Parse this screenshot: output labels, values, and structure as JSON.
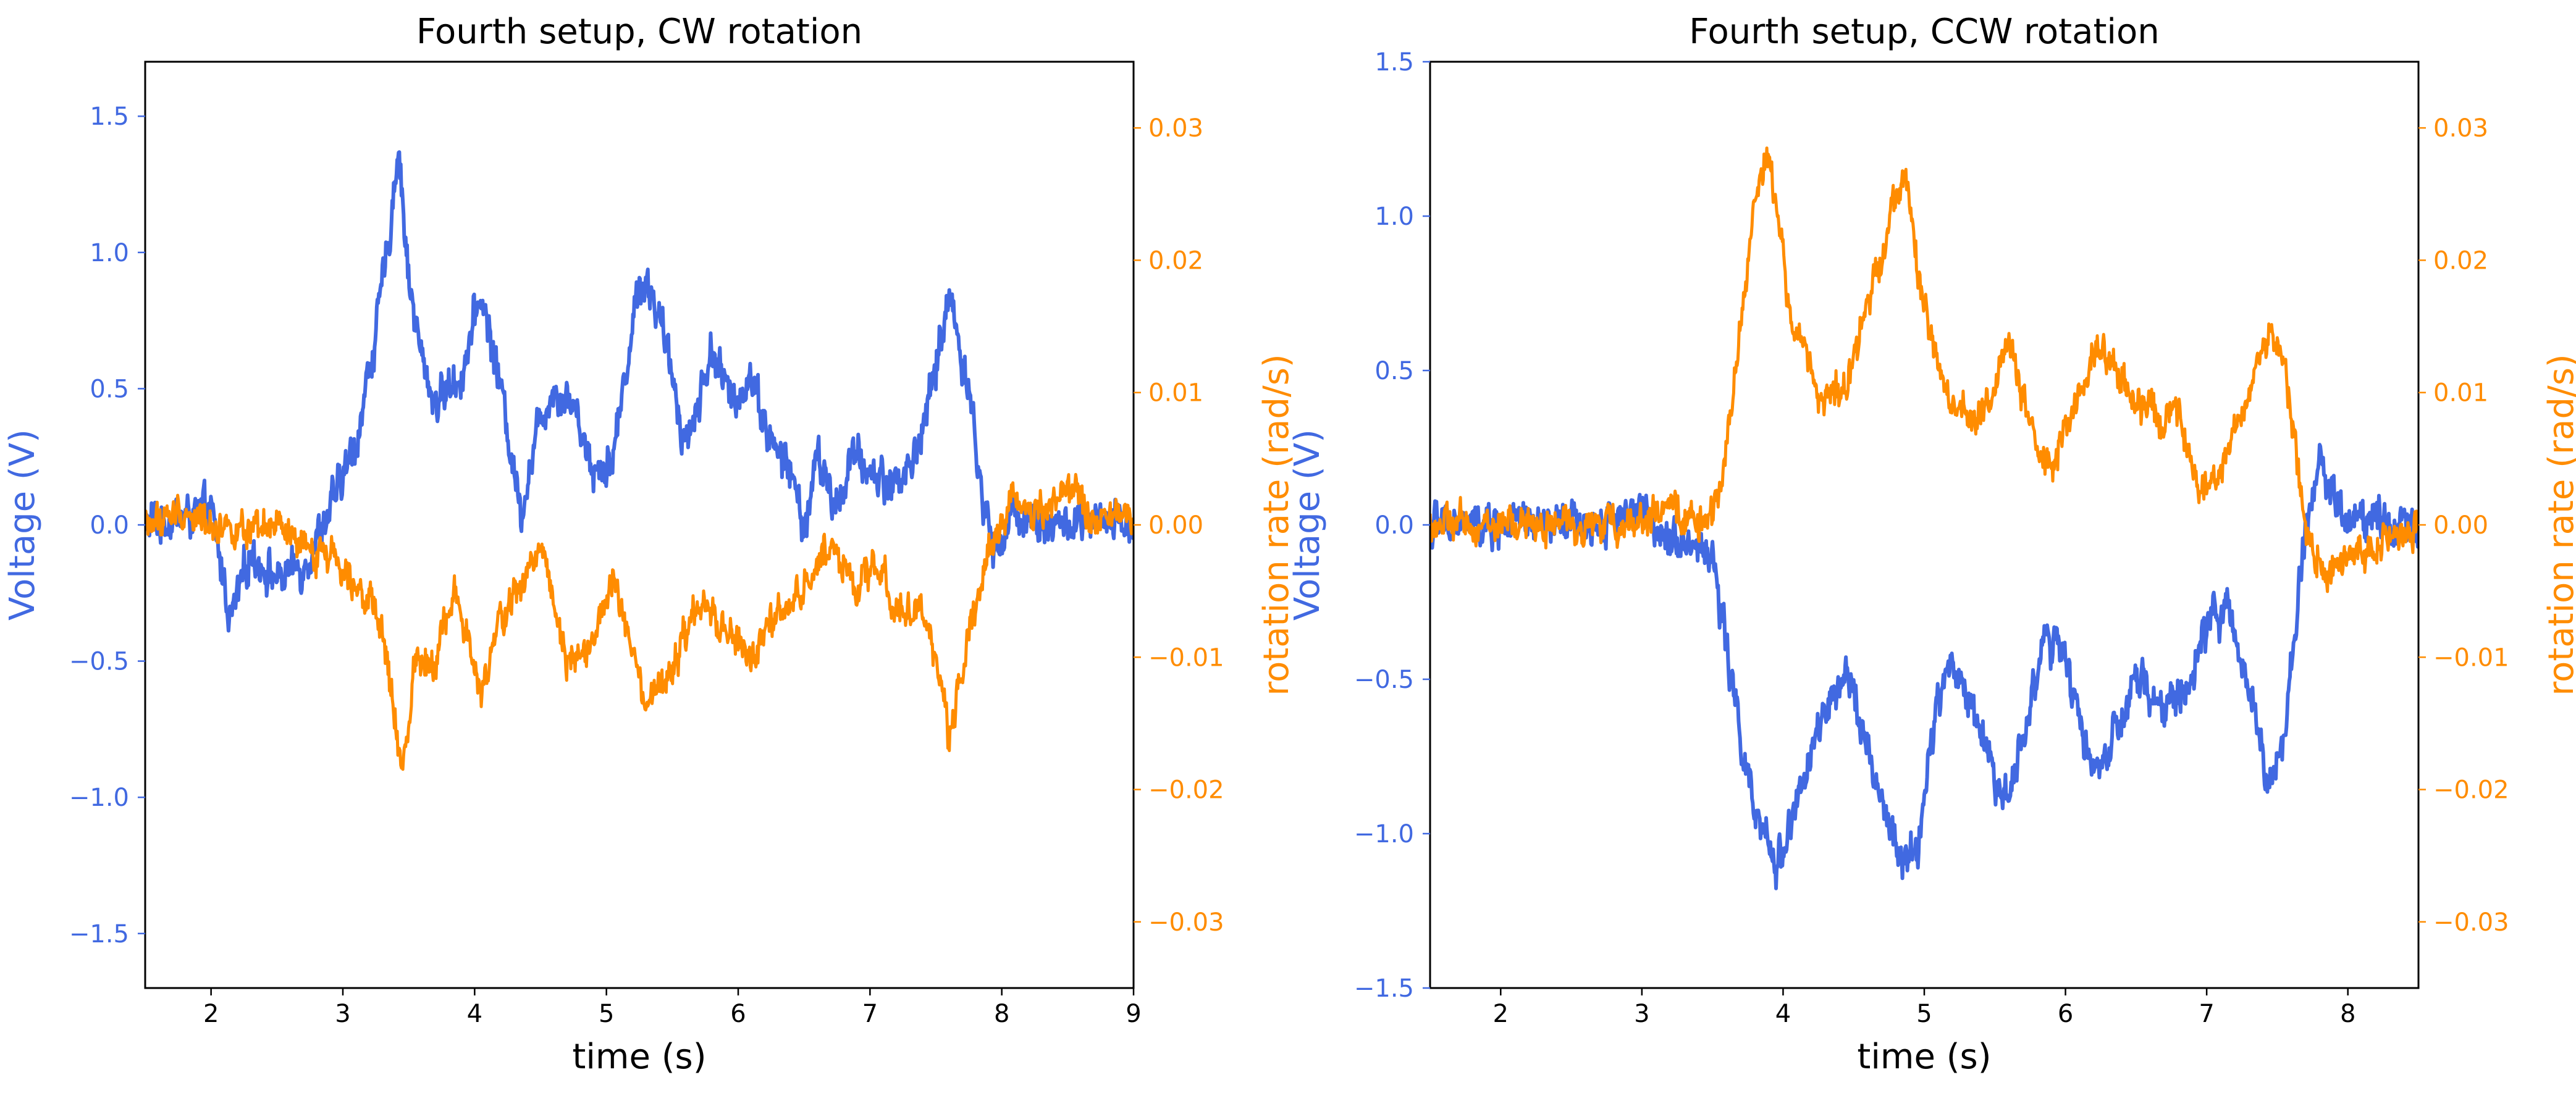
{
  "colors": {
    "voltage": "#4169E1",
    "rotation": "#FF8C00",
    "axis": "#000000"
  },
  "chart_data": [
    {
      "type": "line",
      "title": "Fourth setup, CW rotation",
      "xlabel": "time (s)",
      "ylabel_left": "Voltage (V)",
      "ylabel_right": "rotation rate (rad/s)",
      "xlim": [
        1.5,
        9.0
      ],
      "ylim_left": [
        -1.7,
        1.7
      ],
      "ylim_right": [
        -0.035,
        0.035
      ],
      "xticks": [
        2,
        3,
        4,
        5,
        6,
        7,
        8,
        9
      ],
      "xtick_labels": [
        "2",
        "3",
        "4",
        "5",
        "6",
        "7",
        "8",
        "9"
      ],
      "yticks_left": [
        -1.5,
        -1.0,
        -0.5,
        0.0,
        0.5,
        1.0,
        1.5
      ],
      "ytick_labels_left": [
        "−1.5",
        "−1.0",
        "−0.5",
        "0.0",
        "0.5",
        "1.0",
        "1.5"
      ],
      "yticks_right": [
        -0.03,
        -0.02,
        -0.01,
        0.0,
        0.01,
        0.02,
        0.03
      ],
      "ytick_labels_right": [
        "−0.03",
        "−0.02",
        "−0.01",
        "0.00",
        "0.01",
        "0.02",
        "0.03"
      ],
      "series": [
        {
          "name": "Voltage (V)",
          "axis": "left",
          "color": "#4169E1",
          "x": [
            1.5,
            2.0,
            2.15,
            2.3,
            2.5,
            2.7,
            2.9,
            3.1,
            3.25,
            3.35,
            3.42,
            3.5,
            3.6,
            3.7,
            3.8,
            3.9,
            4.05,
            4.2,
            4.35,
            4.5,
            4.6,
            4.75,
            4.9,
            5.05,
            5.25,
            5.35,
            5.5,
            5.6,
            5.7,
            5.8,
            5.95,
            6.1,
            6.25,
            6.4,
            6.5,
            6.6,
            6.75,
            6.85,
            7.0,
            7.15,
            7.3,
            7.45,
            7.6,
            7.75,
            7.85,
            7.95,
            8.1,
            8.4,
            8.7,
            9.0
          ],
          "y": [
            0.0,
            0.05,
            -0.35,
            -0.1,
            -0.2,
            -0.15,
            0.05,
            0.3,
            0.7,
            1.05,
            1.4,
            0.9,
            0.6,
            0.45,
            0.5,
            0.55,
            0.85,
            0.5,
            0.05,
            0.4,
            0.5,
            0.45,
            0.2,
            0.25,
            0.9,
            0.85,
            0.55,
            0.3,
            0.45,
            0.65,
            0.45,
            0.55,
            0.3,
            0.2,
            -0.02,
            0.25,
            0.05,
            0.25,
            0.2,
            0.15,
            0.2,
            0.45,
            0.85,
            0.5,
            0.1,
            -0.1,
            0.05,
            0.0,
            0.0,
            0.0
          ]
        },
        {
          "name": "rotation rate (rad/s)",
          "axis": "right",
          "color": "#FF8C00",
          "x": [
            1.5,
            1.8,
            2.0,
            2.15,
            2.3,
            2.5,
            2.7,
            2.9,
            3.1,
            3.3,
            3.45,
            3.55,
            3.7,
            3.85,
            4.05,
            4.2,
            4.4,
            4.5,
            4.7,
            4.9,
            5.05,
            5.3,
            5.5,
            5.7,
            5.9,
            6.1,
            6.3,
            6.5,
            6.7,
            6.9,
            7.05,
            7.2,
            7.4,
            7.5,
            7.6,
            7.75,
            7.9,
            8.1,
            8.3,
            8.5,
            8.7,
            9.0
          ],
          "y": [
            0.0,
            0.001,
            0.0,
            0.0,
            -0.001,
            0.0,
            -0.002,
            -0.002,
            -0.004,
            -0.008,
            -0.019,
            -0.01,
            -0.01,
            -0.005,
            -0.013,
            -0.007,
            -0.004,
            -0.001,
            -0.01,
            -0.009,
            -0.004,
            -0.014,
            -0.011,
            -0.006,
            -0.008,
            -0.01,
            -0.007,
            -0.005,
            -0.001,
            -0.005,
            -0.003,
            -0.006,
            -0.007,
            -0.01,
            -0.016,
            -0.008,
            -0.002,
            0.002,
            0.001,
            0.003,
            0.0,
            0.001
          ]
        }
      ]
    },
    {
      "type": "line",
      "title": "Fourth setup, CCW rotation",
      "xlabel": "time (s)",
      "ylabel_left": "Voltage (V)",
      "ylabel_right": "rotation rate (rad/s)",
      "xlim": [
        1.5,
        8.5
      ],
      "ylim_left": [
        -1.5,
        1.5
      ],
      "ylim_right": [
        -0.035,
        0.035
      ],
      "xticks": [
        2,
        3,
        4,
        5,
        6,
        7,
        8
      ],
      "xtick_labels": [
        "2",
        "3",
        "4",
        "5",
        "6",
        "7",
        "8"
      ],
      "yticks_left": [
        -1.5,
        -1.0,
        -0.5,
        0.0,
        0.5,
        1.0,
        1.5
      ],
      "ytick_labels_left": [
        "−1.5",
        "−1.0",
        "−0.5",
        "0.0",
        "0.5",
        "1.0",
        "1.5"
      ],
      "yticks_right": [
        -0.03,
        -0.02,
        -0.01,
        0.0,
        0.01,
        0.02,
        0.03
      ],
      "ytick_labels_right": [
        "−0.03",
        "−0.02",
        "−0.01",
        "0.00",
        "0.01",
        "0.02",
        "0.03"
      ],
      "series": [
        {
          "name": "Voltage (V)",
          "axis": "left",
          "color": "#4169E1",
          "x": [
            1.5,
            2.5,
            2.7,
            2.9,
            3.1,
            3.3,
            3.5,
            3.65,
            3.8,
            3.95,
            4.1,
            4.3,
            4.5,
            4.65,
            4.85,
            4.95,
            5.1,
            5.2,
            5.4,
            5.55,
            5.7,
            5.85,
            6.0,
            6.2,
            6.35,
            6.5,
            6.7,
            6.9,
            7.05,
            7.2,
            7.35,
            7.45,
            7.55,
            7.7,
            7.8,
            8.0,
            8.2,
            8.35,
            8.5
          ],
          "y": [
            0.0,
            0.0,
            0.0,
            0.05,
            0.0,
            -0.05,
            -0.1,
            -0.55,
            -0.95,
            -1.1,
            -0.9,
            -0.6,
            -0.5,
            -0.85,
            -1.1,
            -1.05,
            -0.55,
            -0.45,
            -0.65,
            -0.9,
            -0.7,
            -0.35,
            -0.45,
            -0.8,
            -0.7,
            -0.5,
            -0.6,
            -0.5,
            -0.25,
            -0.35,
            -0.6,
            -0.85,
            -0.7,
            0.0,
            0.2,
            0.0,
            0.05,
            0.0,
            0.0
          ]
        },
        {
          "name": "rotation rate (rad/s)",
          "axis": "right",
          "color": "#FF8C00",
          "x": [
            1.5,
            2.0,
            2.5,
            2.8,
            3.2,
            3.5,
            3.65,
            3.8,
            3.9,
            4.05,
            4.25,
            4.45,
            4.65,
            4.85,
            5.0,
            5.15,
            5.3,
            5.45,
            5.6,
            5.75,
            5.9,
            6.1,
            6.25,
            6.45,
            6.65,
            6.8,
            6.95,
            7.1,
            7.3,
            7.45,
            7.55,
            7.7,
            7.85,
            8.1,
            8.5
          ],
          "y": [
            0.0,
            0.0,
            0.0,
            0.0,
            0.001,
            0.0,
            0.01,
            0.025,
            0.028,
            0.016,
            0.01,
            0.01,
            0.019,
            0.027,
            0.016,
            0.01,
            0.008,
            0.009,
            0.014,
            0.007,
            0.004,
            0.01,
            0.014,
            0.01,
            0.008,
            0.008,
            0.002,
            0.004,
            0.01,
            0.015,
            0.012,
            0.0,
            -0.004,
            -0.002,
            0.0
          ]
        }
      ]
    }
  ]
}
